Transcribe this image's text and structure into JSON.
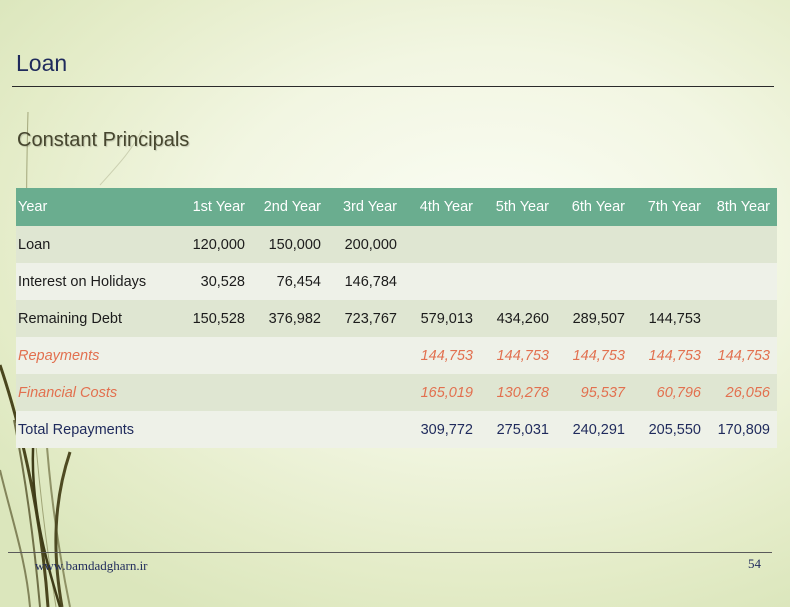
{
  "slide": {
    "title": "Loan",
    "subtitle": "Constant Principals",
    "footer_site": "www.bamdadgharn.ir",
    "page_number": "54"
  },
  "table": {
    "headers": [
      "Year",
      "1st Year",
      "2nd Year",
      "3rd Year",
      "4th Year",
      "5th Year",
      "6th Year",
      "7th Year",
      "8th Year"
    ],
    "rows": [
      [
        "Loan",
        "120,000",
        "150,000",
        "200,000",
        "",
        "",
        "",
        "",
        ""
      ],
      [
        "Interest on Holidays",
        "30,528",
        "76,454",
        "146,784",
        "",
        "",
        "",
        "",
        ""
      ],
      [
        "Remaining Debt",
        "150,528",
        "376,982",
        "723,767",
        "579,013",
        "434,260",
        "289,507",
        "144,753",
        ""
      ],
      [
        "Repayments",
        "",
        "",
        "",
        "144,753",
        "144,753",
        "144,753",
        "144,753",
        "144,753"
      ],
      [
        "Financial Costs",
        "",
        "",
        "",
        "165,019",
        "130,278",
        "95,537",
        "60,796",
        "26,056"
      ],
      [
        "Total Repayments",
        "",
        "",
        "",
        "309,772",
        "275,031",
        "240,291",
        "205,550",
        "170,809"
      ]
    ]
  },
  "colors": {
    "header_bg": "#6aad8f",
    "title_color": "#1f2a5c",
    "highlight_text": "#e2704f"
  }
}
